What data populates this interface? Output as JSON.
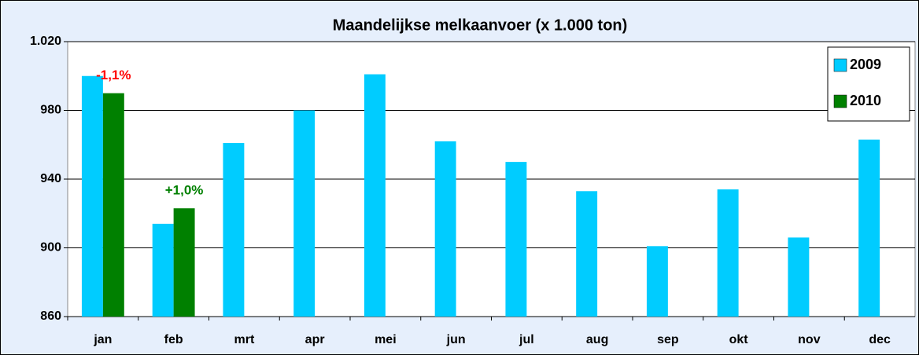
{
  "chart_data": {
    "type": "bar",
    "title": "Maandelijkse melkaanvoer (x 1.000 ton)",
    "categories": [
      "jan",
      "feb",
      "mrt",
      "apr",
      "mei",
      "jun",
      "jul",
      "aug",
      "sep",
      "okt",
      "nov",
      "dec"
    ],
    "series": [
      {
        "name": "2009",
        "color": "#00ccff",
        "values": [
          1000,
          914,
          961,
          980,
          1001,
          962,
          950,
          933,
          901,
          934,
          906,
          963
        ]
      },
      {
        "name": "2010",
        "color": "#008000",
        "values": [
          990,
          923,
          null,
          null,
          null,
          null,
          null,
          null,
          null,
          null,
          null,
          null
        ]
      }
    ],
    "annotations": [
      {
        "text": "-1,1%",
        "color": "#ff0000"
      },
      {
        "text": "+1,0%",
        "color": "#008000"
      }
    ],
    "ylim": [
      860,
      1020
    ],
    "yticks": [
      860,
      900,
      940,
      980,
      {
        "value": 1020,
        "label": "1.020"
      }
    ],
    "grid": true,
    "legend": "top-right"
  }
}
